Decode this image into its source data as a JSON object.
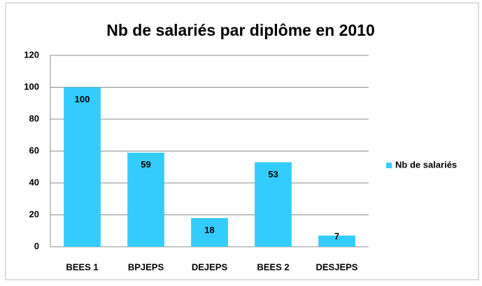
{
  "chart_data": {
    "type": "bar",
    "title": "Nb de salariés par diplôme en 2010",
    "categories": [
      "BEES 1",
      "BPJEPS",
      "DEJEPS",
      "BEES 2",
      "DESJEPS"
    ],
    "series": [
      {
        "name": "Nb de salariés",
        "color": "#33ccff",
        "values": [
          100,
          59,
          18,
          53,
          7
        ]
      }
    ],
    "ylim": [
      0,
      120
    ],
    "yticks": [
      0,
      20,
      40,
      60,
      80,
      100,
      120
    ],
    "grid": true,
    "legend": "right",
    "data_labels": true
  }
}
